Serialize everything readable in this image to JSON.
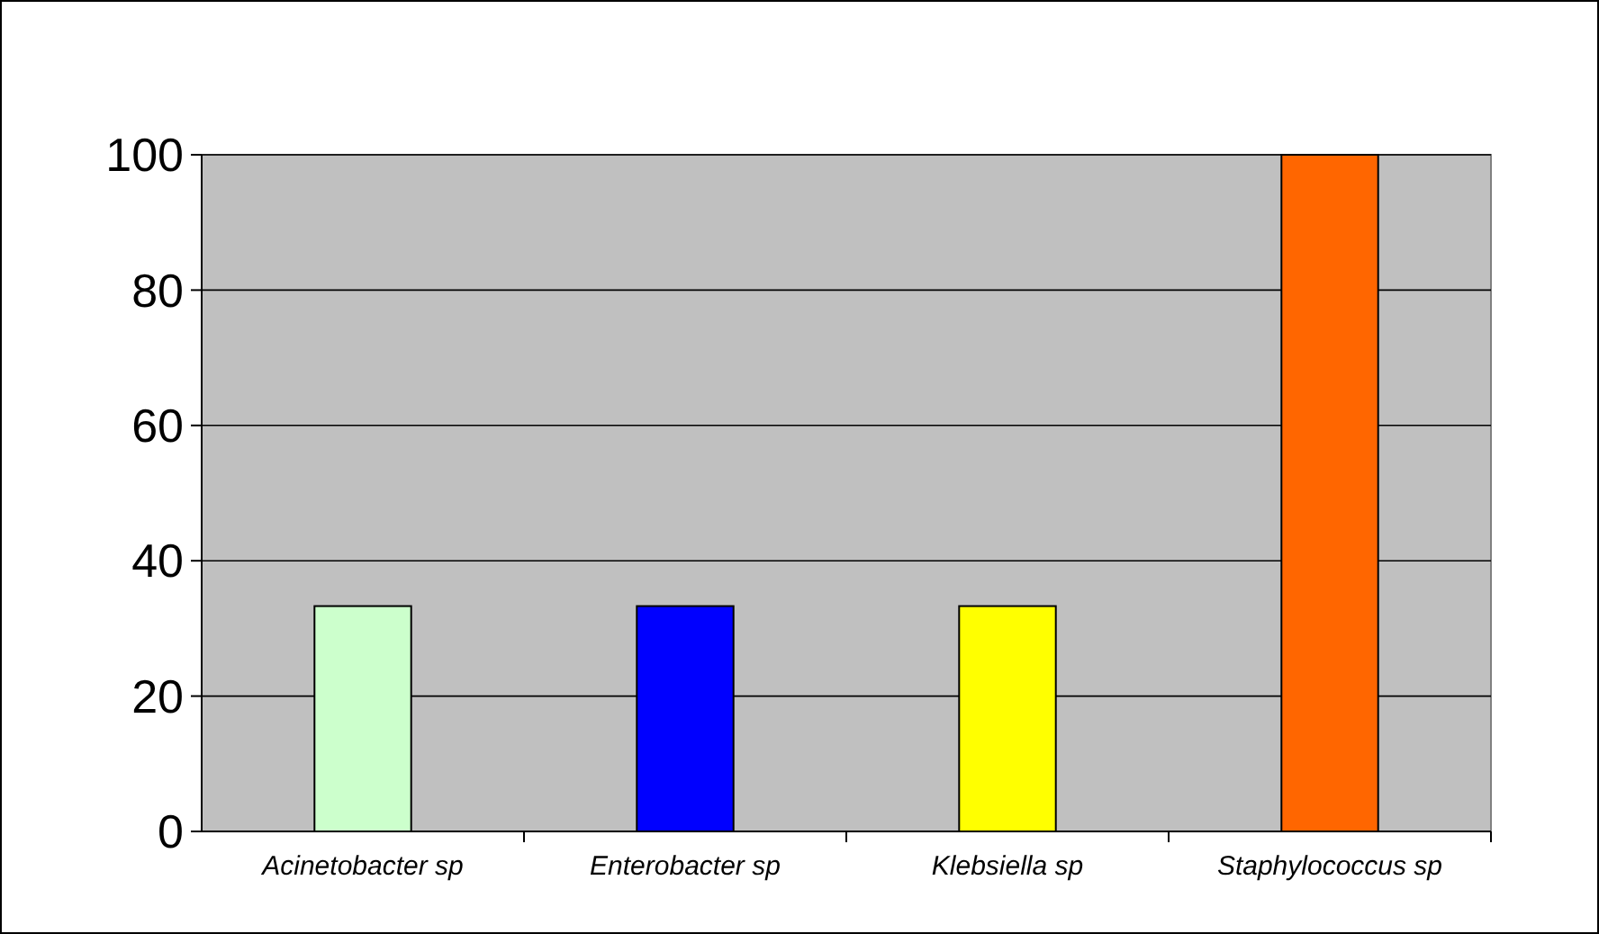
{
  "chart_data": {
    "type": "bar",
    "categories": [
      "Acinetobacter sp",
      "Enterobacter sp",
      "Klebsiella sp",
      "Staphylococcus sp"
    ],
    "values": [
      33.3,
      33.3,
      33.3,
      100
    ],
    "colors": [
      "#ccffcc",
      "#0000ff",
      "#ffff00",
      "#ff6600"
    ],
    "ylim": [
      0,
      100
    ],
    "yticks": [
      0,
      20,
      40,
      60,
      80,
      100
    ],
    "grid": "y"
  }
}
